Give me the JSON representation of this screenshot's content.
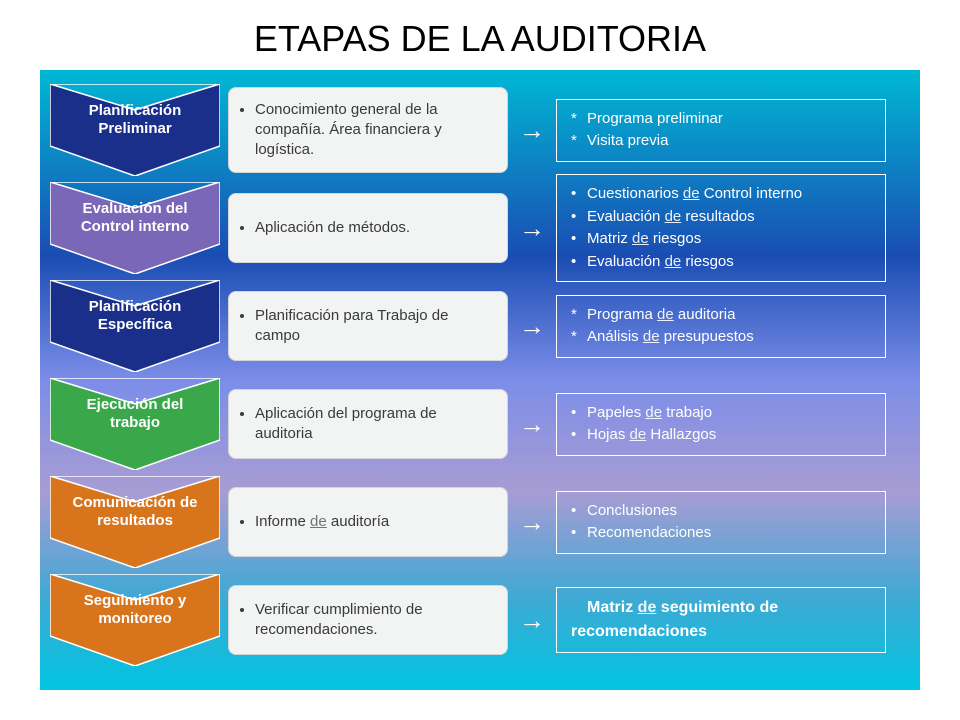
{
  "title": "ETAPAS DE LA AUDITORIA",
  "background_gradient": [
    "#00b8d4",
    "#1a4db3",
    "#7b8de8",
    "#a89cd4",
    "#3fa9d4",
    "#00c4e0"
  ],
  "chevron_stroke": "#ffffff",
  "desc_box_bg": "#f2f3f3",
  "desc_box_border": "#d4d6d6",
  "desc_text_color": "#3a3a3a",
  "output_border_color": "#ffffff",
  "output_text_color": "#ffffff",
  "arrow_glyph": "→",
  "title_fontsize": 36,
  "chevron_label_fontsize": 15,
  "desc_fontsize": 15,
  "output_fontsize": 15,
  "stages": [
    {
      "label": "Planificación Preliminar",
      "fill": "#1a2f8a",
      "desc": "Conocimiento general de la compañía. Área financiera y logística.",
      "outputs": [
        {
          "marker": "*",
          "text": "Programa preliminar"
        },
        {
          "marker": "*",
          "text": "Visita previa"
        }
      ],
      "output_bold": false
    },
    {
      "label": "Evaluación del Control interno",
      "fill": "#7a67b8",
      "desc": "Aplicación de métodos.",
      "outputs": [
        {
          "marker": "•",
          "text_parts": [
            "Cuestionarios ",
            {
              "de": "de"
            },
            " Control interno"
          ]
        },
        {
          "marker": "•",
          "text_parts": [
            "Evaluación ",
            {
              "de": "de"
            },
            " resultados"
          ]
        },
        {
          "marker": "•",
          "text_parts": [
            "Matriz ",
            {
              "de": "de"
            },
            " riesgos"
          ]
        },
        {
          "marker": "•",
          "text_parts": [
            "Evaluación ",
            {
              "de": "de"
            },
            " riesgos"
          ]
        }
      ],
      "output_bold": false
    },
    {
      "label": "Planificación Específica",
      "fill": "#1a2f8a",
      "desc": "Planificación para Trabajo de campo",
      "outputs": [
        {
          "marker": "*",
          "text_parts": [
            "Programa ",
            {
              "de": "de"
            },
            " auditoria"
          ]
        },
        {
          "marker": "*",
          "text_parts": [
            "Análisis ",
            {
              "de": "de"
            },
            " presupuestos"
          ]
        }
      ],
      "output_bold": false
    },
    {
      "label": "Ejecución del trabajo",
      "fill": "#3aa84a",
      "desc": "Aplicación del programa de auditoria",
      "outputs": [
        {
          "marker": "•",
          "text_parts": [
            "Papeles ",
            {
              "de": "de"
            },
            " trabajo"
          ]
        },
        {
          "marker": "•",
          "text_parts": [
            "Hojas ",
            {
              "de": "de"
            },
            " Hallazgos"
          ]
        }
      ],
      "output_bold": false
    },
    {
      "label": "Comunicación de resultados",
      "fill": "#d8751c",
      "desc_parts": [
        "Informe ",
        {
          "de": "de"
        },
        " auditoría"
      ],
      "outputs": [
        {
          "marker": "•",
          "text": "Conclusiones"
        },
        {
          "marker": "•",
          "text": "Recomendaciones"
        }
      ],
      "output_bold": false
    },
    {
      "label": "Seguimiento y monitoreo",
      "fill": "#d8751c",
      "desc": "Verificar cumplimiento de recomendaciones.",
      "outputs": [
        {
          "marker": "",
          "text_parts": [
            "Matriz ",
            {
              "de": "de"
            },
            " seguimiento de recomendaciones"
          ]
        }
      ],
      "output_bold": true
    }
  ]
}
